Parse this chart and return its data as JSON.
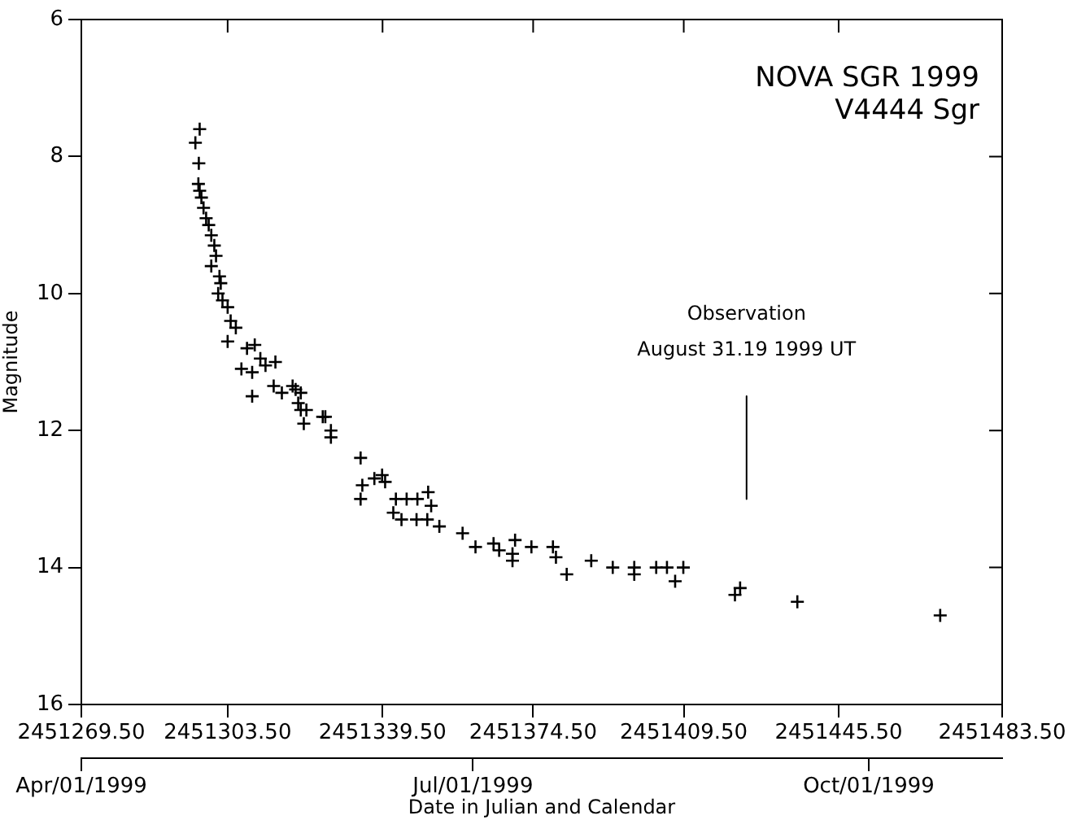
{
  "chart_data": {
    "type": "scatter",
    "title": "NOVA SGR 1999",
    "subtitle": "V4444 Sgr",
    "xlabel": "Date in Julian and Calendar",
    "ylabel": "Magnitude",
    "xlim": [
      2451269.5,
      2451483.5
    ],
    "xticks": [
      {
        "value": 2451269.5,
        "label": "2451269.50"
      },
      {
        "value": 2451303.5,
        "label": "2451303.50"
      },
      {
        "value": 2451339.5,
        "label": "2451339.50"
      },
      {
        "value": 2451374.5,
        "label": "2451374.50"
      },
      {
        "value": 2451409.5,
        "label": "2451409.50"
      },
      {
        "value": 2451445.5,
        "label": "2451445.50"
      },
      {
        "value": 2451483.5,
        "label": "2451483.50"
      }
    ],
    "x2lim": [
      "1999-04-01",
      "1999-11-01"
    ],
    "x2ticks": [
      {
        "value": "1999-04-01",
        "label": "Apr/01/1999"
      },
      {
        "value": "1999-07-01",
        "label": "Jul/01/1999"
      },
      {
        "value": "1999-10-01",
        "label": "Oct/01/1999"
      }
    ],
    "ylim": [
      16,
      6
    ],
    "yticks": [
      6,
      8,
      10,
      12,
      14,
      16
    ],
    "grid": false,
    "legend": false,
    "annotations": [
      "Observation",
      {
        "text": "August 31.19 1999 UT",
        "x": 2451424.1,
        "y": 11.5
      }
    ],
    "series": [
      {
        "color": "#000000",
        "marker": "cross",
        "x": [
          2451297.0,
          2451296.0,
          2451296.8,
          2451296.7,
          2451297.0,
          2451297.4,
          2451297.9,
          2451298.5,
          2451299.1,
          2451299.7,
          2451300.4,
          2451300.8,
          2451299.7,
          2451301.6,
          2451301.9,
          2451301.3,
          2451302.3,
          2451303.5,
          2451304.2,
          2451305.4,
          2451303.5,
          2451308.0,
          2451309.8,
          2451311.1,
          2451306.7,
          2451309.2,
          2451312.3,
          2451314.6,
          2451309.2,
          2451314.2,
          2451316.1,
          2451318.6,
          2451320.5,
          2451319.9,
          2451321.8,
          2451325.6,
          2451319.3,
          2451320.5,
          2451321.2,
          2451326.2,
          2451327.5,
          2451327.5,
          2451334.4,
          2451334.8,
          2451334.4,
          2451337.6,
          2451339.4,
          2451340.1,
          2451342.6,
          2451345.1,
          2451347.6,
          2451350.1,
          2451350.8,
          2451342.0,
          2451343.9,
          2451347.4,
          2451349.9,
          2451352.7,
          2451358.1,
          2451361.1,
          2451365.3,
          2451366.6,
          2451369.7,
          2451369.7,
          2451370.3,
          2451374.1,
          2451379.1,
          2451379.8,
          2451382.3,
          2451388.0,
          2451393.0,
          2451398.0,
          2451398.0,
          2451403.1,
          2451405.6,
          2451407.5,
          2451409.4,
          2451421.4,
          2451422.6,
          2451435.9,
          2451469.1
        ],
        "values": [
          7.6,
          7.8,
          8.1,
          8.4,
          8.5,
          8.6,
          8.75,
          8.9,
          9.0,
          9.15,
          9.3,
          9.45,
          9.6,
          9.75,
          9.85,
          10.0,
          10.1,
          10.2,
          10.4,
          10.5,
          10.7,
          10.8,
          10.75,
          10.95,
          11.1,
          11.15,
          11.05,
          11.0,
          11.5,
          11.35,
          11.45,
          11.35,
          11.45,
          11.6,
          11.7,
          11.8,
          11.4,
          11.7,
          11.9,
          11.8,
          12.0,
          12.1,
          12.4,
          12.8,
          13.0,
          12.7,
          12.65,
          12.75,
          13.0,
          13.0,
          13.0,
          12.9,
          13.1,
          13.2,
          13.3,
          13.3,
          13.3,
          13.4,
          13.5,
          13.7,
          13.65,
          13.75,
          13.8,
          13.9,
          13.6,
          13.7,
          13.7,
          13.85,
          14.1,
          13.9,
          14.0,
          14.0,
          14.1,
          14.0,
          14.0,
          14.2,
          14.0,
          14.4,
          14.3,
          14.5,
          14.7
        ]
      },
      {
        "type": "line",
        "color": "#000000",
        "x": [
          2451424.1,
          2451424.1
        ],
        "values": [
          11.5,
          13.0
        ]
      }
    ]
  }
}
